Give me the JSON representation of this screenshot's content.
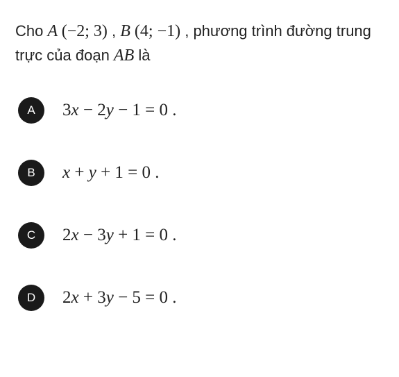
{
  "question": {
    "prefix": "Cho ",
    "pointA_name": "A",
    "pointA_coords": "(−2; 3)",
    "sep1": " , ",
    "pointB_name": "B",
    "pointB_coords": "(4; −1)",
    "mid": " , phương trình đường trung trực của đoạn ",
    "seg": "AB",
    "suffix": " là",
    "font_size": 22,
    "color": "#222222"
  },
  "options": [
    {
      "letter": "A",
      "expr_html": "3<span class='v'>x</span> − 2<span class='v'>y</span> − 1 = 0 ."
    },
    {
      "letter": "B",
      "expr_html": "<span class='v'>x</span> + <span class='v'>y</span> + 1 = 0 ."
    },
    {
      "letter": "C",
      "expr_html": "2<span class='v'>x</span> − 3<span class='v'>y</span> + 1 = 0 ."
    },
    {
      "letter": "D",
      "expr_html": "2<span class='v'>x</span> + 3<span class='v'>y</span> − 5 = 0 ."
    }
  ],
  "style": {
    "badge_bg": "#1a1a1a",
    "badge_fg": "#ffffff",
    "badge_size": 38,
    "option_font_size": 25,
    "option_gap": 52,
    "background": "#ffffff"
  }
}
